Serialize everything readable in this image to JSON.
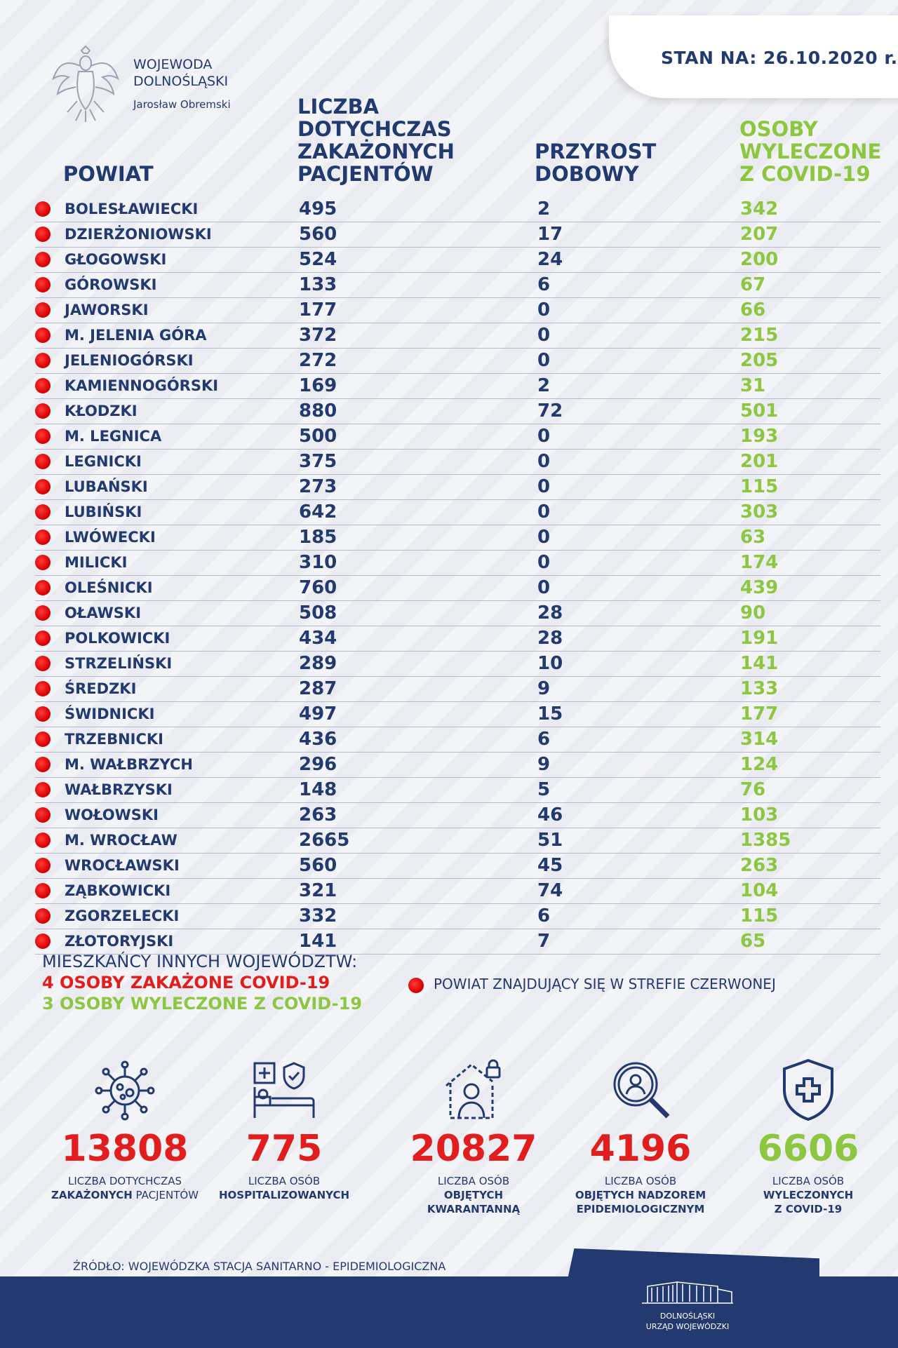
{
  "header": {
    "date_label": "STAN NA: 26.10.2020 r.",
    "office_line1": "WOJEWODA",
    "office_line2": "DOLNOŚLĄSKI",
    "office_name": "Jarosław Obremski"
  },
  "columns": {
    "powiat": "POWIAT",
    "liczba": [
      "LICZBA",
      "DOTYCHCZAS",
      "ZAKAŻONYCH",
      "PACJENTÓW"
    ],
    "przyrost": [
      "PRZYROST",
      "DOBOWY"
    ],
    "wyleczone": [
      "OSOBY",
      "WYLECZONE",
      "Z COVID-19"
    ]
  },
  "rows": [
    {
      "name": "BOLESŁAWIECKI",
      "total": "495",
      "daily": "2",
      "recovered": "342",
      "red_zone": true
    },
    {
      "name": "DZIERŻONIOWSKI",
      "total": "560",
      "daily": "17",
      "recovered": "207",
      "red_zone": true
    },
    {
      "name": "GŁOGOWSKI",
      "total": "524",
      "daily": "24",
      "recovered": "200",
      "red_zone": true
    },
    {
      "name": "GÓROWSKI",
      "total": "133",
      "daily": "6",
      "recovered": "67",
      "red_zone": true
    },
    {
      "name": "JAWORSKI",
      "total": "177",
      "daily": "0",
      "recovered": "66",
      "red_zone": true
    },
    {
      "name": "M. JELENIA GÓRA",
      "total": "372",
      "daily": "0",
      "recovered": "215",
      "red_zone": true
    },
    {
      "name": "JELENIOGÓRSKI",
      "total": "272",
      "daily": "0",
      "recovered": "205",
      "red_zone": true
    },
    {
      "name": "KAMIENNOGÓRSKI",
      "total": "169",
      "daily": "2",
      "recovered": "31",
      "red_zone": true
    },
    {
      "name": "KŁODZKI",
      "total": "880",
      "daily": "72",
      "recovered": "501",
      "red_zone": true
    },
    {
      "name": "M. LEGNICA",
      "total": "500",
      "daily": "0",
      "recovered": "193",
      "red_zone": true
    },
    {
      "name": "LEGNICKI",
      "total": "375",
      "daily": "0",
      "recovered": "201",
      "red_zone": true
    },
    {
      "name": "LUBAŃSKI",
      "total": "273",
      "daily": "0",
      "recovered": "115",
      "red_zone": true
    },
    {
      "name": "LUBIŃSKI",
      "total": "642",
      "daily": "0",
      "recovered": "303",
      "red_zone": true
    },
    {
      "name": "LWÓWECKI",
      "total": "185",
      "daily": "0",
      "recovered": "63",
      "red_zone": true
    },
    {
      "name": "MILICKI",
      "total": "310",
      "daily": "0",
      "recovered": "174",
      "red_zone": true
    },
    {
      "name": "OLEŚNICKI",
      "total": "760",
      "daily": "0",
      "recovered": "439",
      "red_zone": true
    },
    {
      "name": "OŁAWSKI",
      "total": "508",
      "daily": "28",
      "recovered": "90",
      "red_zone": true
    },
    {
      "name": "POLKOWICKI",
      "total": "434",
      "daily": "28",
      "recovered": "191",
      "red_zone": true
    },
    {
      "name": "STRZELIŃSKI",
      "total": "289",
      "daily": "10",
      "recovered": "141",
      "red_zone": true
    },
    {
      "name": "ŚREDZKI",
      "total": "287",
      "daily": "9",
      "recovered": "133",
      "red_zone": true
    },
    {
      "name": "ŚWIDNICKI",
      "total": "497",
      "daily": "15",
      "recovered": "177",
      "red_zone": true
    },
    {
      "name": "TRZEBNICKI",
      "total": "436",
      "daily": "6",
      "recovered": "314",
      "red_zone": true
    },
    {
      "name": "M. WAŁBRZYCH",
      "total": "296",
      "daily": "9",
      "recovered": "124",
      "red_zone": true
    },
    {
      "name": "WAŁBRZYSKI",
      "total": "148",
      "daily": "5",
      "recovered": "76",
      "red_zone": true
    },
    {
      "name": "WOŁOWSKI",
      "total": "263",
      "daily": "46",
      "recovered": "103",
      "red_zone": true
    },
    {
      "name": "M. WROCŁAW",
      "total": "2665",
      "daily": "51",
      "recovered": "1385",
      "red_zone": true
    },
    {
      "name": "WROCŁAWSKI",
      "total": "560",
      "daily": "45",
      "recovered": "263",
      "red_zone": true
    },
    {
      "name": "ZĄBKOWICKI",
      "total": "321",
      "daily": "74",
      "recovered": "104",
      "red_zone": true
    },
    {
      "name": "ZGORZELECKI",
      "total": "332",
      "daily": "6",
      "recovered": "115",
      "red_zone": true
    },
    {
      "name": "ZŁOTORYJSKI",
      "total": "141",
      "daily": "7",
      "recovered": "65",
      "red_zone": true
    }
  ],
  "notes": {
    "title": "MIESZKAŃCY INNYCH WOJEWÓDZTW:",
    "infected": "4 OSOBY ZAKAŻONE COVID-19",
    "recovered": "3 OSOBY WYLECZONE Z COVID-19",
    "legend": "POWIAT ZNAJDUJĄCY SIĘ W STREFIE CZERWONEJ"
  },
  "stats": [
    {
      "icon": "virus-icon",
      "value": "13808",
      "color": "#e11d1d",
      "label1": "LICZBA DOTYCHCZAS",
      "label2a": "ZAKAŻONYCH",
      "label2b": " PACJENTÓW",
      "label3": ""
    },
    {
      "icon": "hospital-bed-icon",
      "value": "775",
      "color": "#e11d1d",
      "label1": "LICZBA OSÓB",
      "label2a": "HOSPITALIZOWANYCH",
      "label2b": "",
      "label3": ""
    },
    {
      "icon": "quarantine-home-icon",
      "value": "20827",
      "color": "#e11d1d",
      "label1": "LICZBA OSÓB",
      "label2a": "OBJĘTYCH",
      "label2b": "",
      "label3": "KWARANTANNĄ"
    },
    {
      "icon": "magnifier-person-icon",
      "value": "4196",
      "color": "#e11d1d",
      "label1": "LICZBA OSÓB",
      "label2a": "OBJĘTYCH NADZOREM",
      "label2b": "",
      "label3": "EPIDEMIOLOGICZNYM"
    },
    {
      "icon": "shield-cross-icon",
      "value": "6606",
      "color": "#8dc63f",
      "label1": "LICZBA OSÓB",
      "label2a": "WYLECZONYCH",
      "label2b": "",
      "label3": "Z COVID-19"
    }
  ],
  "source": "ŹRÓDŁO: WOJEWÓDZKA STACJA SANITARNO - EPIDEMIOLOGICZNA",
  "footer": {
    "line1": "DOLNOŚLĄSKI",
    "line2": "URZĄD WOJEWÓDZKI"
  },
  "colors": {
    "navy": "#233a70",
    "green": "#8dc63f",
    "red": "#e11d1d"
  }
}
